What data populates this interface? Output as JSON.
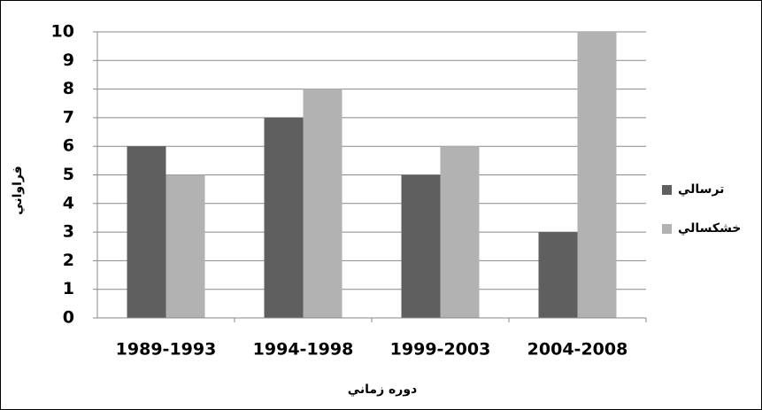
{
  "chart_data": {
    "type": "bar",
    "x_label": "دوره زماني",
    "y_label": "فراواني",
    "categories": [
      "1989-1993",
      "1994-1998",
      "1999-2003",
      "2004-2008"
    ],
    "series": [
      {
        "name": "ترسالي",
        "color": "#5f5f5f",
        "values": [
          6,
          7,
          5,
          3
        ]
      },
      {
        "name": "خشكسالي",
        "color": "#b2b2b2",
        "values": [
          5,
          8,
          6,
          10
        ]
      }
    ],
    "ylim": [
      0,
      10
    ],
    "yticks": [
      0,
      1,
      2,
      3,
      4,
      5,
      6,
      7,
      8,
      9,
      10
    ],
    "grid": true,
    "legend": "right"
  }
}
